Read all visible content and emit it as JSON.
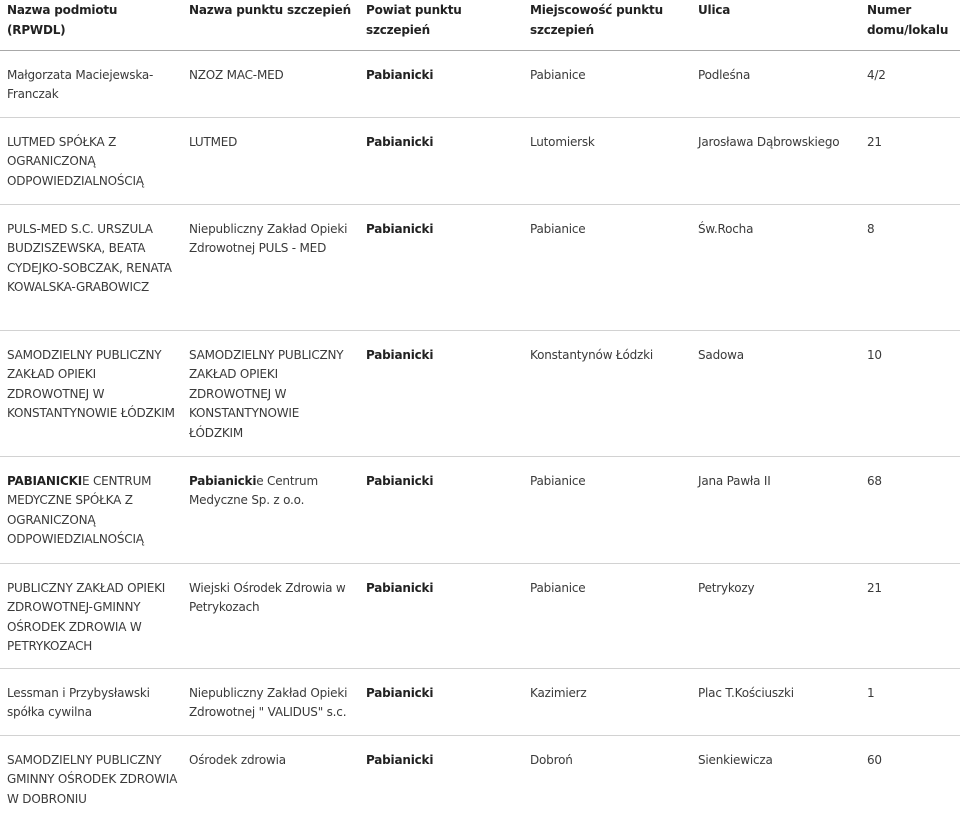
{
  "table": {
    "headers": [
      "Nazwa podmiotu (RPWDL)",
      "Nazwa punktu szczepień",
      "Powiat punktu szczepień",
      "Miejscowość punktu szczepień",
      "Ulica",
      "Numer domu/lokalu"
    ],
    "rows": [
      {
        "podmiot": {
          "bold": "",
          "text": "Małgorzata Maciejewska-Franczak"
        },
        "punkt": {
          "bold": "",
          "text": "NZOZ MAC-MED"
        },
        "powiat": "Pabianicki",
        "miejscowosc": "Pabianice",
        "ulica": "Podleśna",
        "numer": "4/2"
      },
      {
        "podmiot": {
          "bold": "",
          "text": "LUTMED SPÓŁKA Z OGRANICZONĄ ODPOWIEDZIALNOŚCIĄ"
        },
        "punkt": {
          "bold": "",
          "text": "LUTMED"
        },
        "powiat": "Pabianicki",
        "miejscowosc": "Lutomiersk",
        "ulica": "Jarosława Dąbrowskiego",
        "numer": "21"
      },
      {
        "podmiot": {
          "bold": "",
          "text": "PULS-MED S.C. URSZULA BUDZISZEWSKA, BEATA CYDEJKO-SOBCZAK, RENATA KOWALSKA-GRABOWICZ"
        },
        "punkt": {
          "bold": "",
          "text": "Niepubliczny Zakład Opieki Zdrowotnej PULS - MED"
        },
        "powiat": "Pabianicki",
        "miejscowosc": "Pabianice",
        "ulica": "Św.Rocha",
        "numer": "8"
      },
      {
        "podmiot": {
          "bold": "",
          "text": "SAMODZIELNY PUBLICZNY ZAKŁAD OPIEKI ZDROWOTNEJ W KONSTANTYNOWIE ŁÓDZKIM"
        },
        "punkt": {
          "bold": "",
          "text": "SAMODZIELNY PUBLICZNY ZAKŁAD OPIEKI ZDROWOTNEJ W KONSTANTYNOWIE ŁÓDZKIM"
        },
        "powiat": "Pabianicki",
        "miejscowosc": "Konstantynów Łódzki",
        "ulica": "Sadowa",
        "numer": "10"
      },
      {
        "podmiot": {
          "bold": "PABIANICKI",
          "text": "E CENTRUM MEDYCZNE SPÓŁKA Z OGRANICZONĄ ODPOWIEDZIALNOŚCIĄ"
        },
        "punkt": {
          "bold": "Pabianicki",
          "text": "e Centrum Medyczne Sp. z o.o."
        },
        "powiat": "Pabianicki",
        "miejscowosc": "Pabianice",
        "ulica": "Jana Pawła II",
        "numer": "68"
      },
      {
        "podmiot": {
          "bold": "",
          "text": "PUBLICZNY ZAKŁAD OPIEKI ZDROWOTNEJ-GMINNY OŚRODEK ZDROWIA W PETRYKOZACH"
        },
        "punkt": {
          "bold": "",
          "text": "Wiejski Ośrodek Zdrowia w Petrykozach"
        },
        "powiat": "Pabianicki",
        "miejscowosc": "Pabianice",
        "ulica": "Petrykozy",
        "numer": "21"
      },
      {
        "podmiot": {
          "bold": "",
          "text": "Lessman i Przybysławski spółka cywilna"
        },
        "punkt": {
          "bold": "",
          "text": "Niepubliczny Zakład Opieki Zdrowotnej \" VALIDUS\" s.c."
        },
        "powiat": "Pabianicki",
        "miejscowosc": "Kazimierz",
        "ulica": "Plac T.Kościuszki",
        "numer": "1"
      },
      {
        "podmiot": {
          "bold": "",
          "text": "SAMODZIELNY PUBLICZNY GMINNY OŚRODEK ZDROWIA W DOBRONIU"
        },
        "punkt": {
          "bold": "",
          "text": "Ośrodek zdrowia"
        },
        "powiat": "Pabianicki",
        "miejscowosc": "Dobroń",
        "ulica": "Sienkiewicza",
        "numer": "60"
      }
    ]
  }
}
